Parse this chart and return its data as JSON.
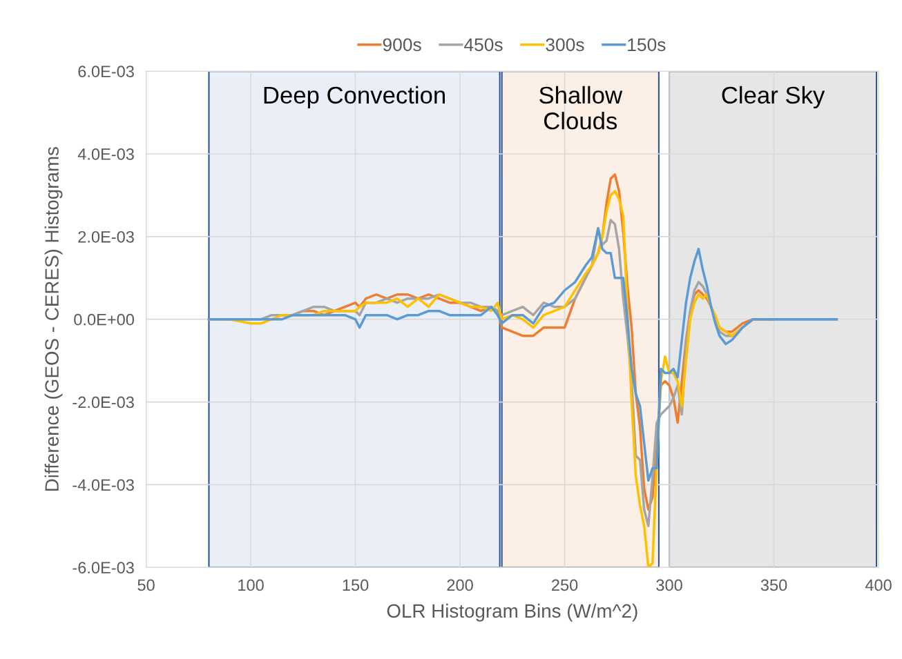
{
  "chart_data": {
    "type": "line",
    "xlabel": "OLR Histogram Bins (W/m^2)",
    "ylabel": "Difference (GEOS - CERES) Histograms",
    "x": [
      80,
      90,
      100,
      105,
      110,
      115,
      120,
      125,
      130,
      135,
      140,
      145,
      150,
      152,
      155,
      160,
      165,
      170,
      175,
      180,
      185,
      190,
      195,
      200,
      205,
      210,
      215,
      218,
      220,
      225,
      230,
      235,
      240,
      245,
      250,
      255,
      260,
      263,
      266,
      268,
      270,
      272,
      274,
      276,
      278,
      280,
      282,
      284,
      286,
      288,
      290,
      292,
      294,
      296,
      298,
      300,
      302,
      304,
      306,
      308,
      310,
      312,
      314,
      316,
      318,
      320,
      322,
      324,
      327,
      330,
      335,
      340,
      345,
      350,
      360,
      370,
      380
    ],
    "series": [
      {
        "name": "900s",
        "color": "#ed7d31",
        "values": [
          null,
          null,
          null,
          null,
          null,
          0.0001,
          0.0001,
          0.0002,
          0.0002,
          0.0001,
          0.0002,
          0.0003,
          0.0004,
          0.0003,
          0.0005,
          0.0006,
          0.0005,
          0.0006,
          0.0006,
          0.0005,
          0.0006,
          0.0005,
          0.0004,
          0.0004,
          0.0003,
          0.0002,
          0.0003,
          0.0002,
          -0.0002,
          -0.0003,
          -0.0004,
          -0.0004,
          -0.0002,
          -0.0002,
          -0.0002,
          0.0005,
          0.001,
          0.0013,
          0.0016,
          0.002,
          0.0028,
          0.0034,
          0.0035,
          0.0031,
          0.0021,
          0.0008,
          -0.0002,
          -0.0018,
          -0.0026,
          -0.0041,
          -0.0046,
          -0.0043,
          -0.003,
          -0.0016,
          -0.0015,
          -0.0016,
          -0.0019,
          -0.0025,
          -0.0015,
          -0.0005,
          0.0002,
          0.0006,
          0.0007,
          0.0006,
          0.0005,
          0.0003,
          0,
          -0.0002,
          -0.0003,
          -0.0003,
          -0.0001,
          0,
          0,
          0,
          null,
          null,
          null
        ]
      },
      {
        "name": "450s",
        "color": "#a5a5a5",
        "values": [
          0,
          0,
          0,
          0,
          0.0001,
          0.0001,
          0.0001,
          0.0002,
          0.0003,
          0.0003,
          0.0002,
          0.0002,
          0.0002,
          0.0001,
          0.0004,
          0.0004,
          0.0005,
          0.0004,
          0.0005,
          0.0005,
          0.0005,
          0.0006,
          0.0005,
          0.0004,
          0.0004,
          0.0003,
          0.0003,
          0.0002,
          0.0001,
          0.0002,
          0.0003,
          0.0001,
          0.0004,
          0.0003,
          0.0003,
          0.0005,
          0.001,
          0.0013,
          0.0022,
          0.0018,
          0.0019,
          0.0024,
          0.0023,
          0.0017,
          0.0005,
          -0.0004,
          -0.0015,
          -0.0033,
          -0.0034,
          -0.0046,
          -0.005,
          -0.0038,
          -0.0025,
          -0.0023,
          -0.0022,
          -0.0021,
          -0.0019,
          -0.0016,
          -0.0023,
          -0.0006,
          0.0002,
          0.0007,
          0.0009,
          0.0008,
          0.0006,
          0.0003,
          0,
          -0.0003,
          -0.0004,
          -0.0004,
          -0.0002,
          0,
          0,
          0,
          0,
          0,
          0
        ]
      },
      {
        "name": "300s",
        "color": "#ffc000",
        "values": [
          0,
          0,
          -0.0001,
          -0.0001,
          0,
          0.0001,
          0.0001,
          0.0001,
          0.0001,
          0.0002,
          0.0002,
          0.0002,
          0.0002,
          0.0003,
          0.0004,
          0.0004,
          0.0004,
          0.0005,
          0.0003,
          0.0005,
          0.0003,
          0.0006,
          0.0005,
          0.0004,
          0.0003,
          0.0003,
          0.0002,
          0.0004,
          0,
          0.0001,
          0,
          -0.0002,
          0.0001,
          0.0002,
          0.0003,
          0.0007,
          0.0011,
          0.0013,
          0.0016,
          0.002,
          0.0026,
          0.003,
          0.0031,
          0.0029,
          0.0025,
          0.0002,
          -0.002,
          -0.0038,
          -0.0045,
          -0.005,
          -0.006,
          -0.0059,
          -0.0035,
          -0.0015,
          -0.0009,
          -0.0013,
          -0.0013,
          -0.0015,
          -0.0021,
          -0.001,
          0,
          0.0004,
          0.0006,
          0.0005,
          0.0006,
          0.0003,
          0.0001,
          -0.0002,
          -0.0003,
          -0.0004,
          -0.0002,
          0,
          0,
          null,
          null,
          null,
          null
        ]
      },
      {
        "name": "150s",
        "color": "#5b9bd5",
        "values": [
          0,
          0,
          0,
          0,
          0,
          0,
          0.0001,
          0.0001,
          0.0001,
          0.0001,
          0.0001,
          0.0001,
          0,
          -0.0002,
          0.0001,
          0.0001,
          0.0001,
          0,
          0.0001,
          0.0001,
          0.0002,
          0.0002,
          0.0001,
          0.0001,
          0.0001,
          0.0001,
          0.0003,
          0.0001,
          -0.0001,
          0.0001,
          0.0001,
          -0.0001,
          0.0003,
          0.0004,
          0.0007,
          0.0009,
          0.0013,
          0.0015,
          0.0022,
          0.0017,
          0.0016,
          0.0016,
          0.001,
          0.001,
          0.001,
          0,
          -0.0012,
          -0.0018,
          -0.0021,
          -0.003,
          -0.0039,
          -0.0036,
          -0.0036,
          -0.0012,
          -0.0013,
          -0.0013,
          -0.0012,
          -0.0014,
          -0.0005,
          0.0004,
          0.001,
          0.0014,
          0.0017,
          0.0012,
          0.0008,
          0.0003,
          -0.0001,
          -0.0004,
          -0.0006,
          -0.0005,
          -0.0002,
          0,
          0,
          0,
          0,
          0,
          0
        ]
      }
    ],
    "xlim": [
      50,
      400
    ],
    "xticks": [
      50,
      100,
      150,
      200,
      250,
      300,
      350,
      400
    ],
    "ylim": [
      -0.006,
      0.006
    ],
    "yticks": [
      {
        "value": -0.006,
        "label": "-6.0E-03"
      },
      {
        "value": -0.004,
        "label": "-4.0E-03"
      },
      {
        "value": -0.002,
        "label": "-2.0E-03"
      },
      {
        "value": 0,
        "label": "0.0E+00"
      },
      {
        "value": 0.002,
        "label": "2.0E-03"
      },
      {
        "value": 0.004,
        "label": "4.0E-03"
      },
      {
        "value": 0.006,
        "label": "6.0E-03"
      }
    ],
    "bands": [
      {
        "axis": "x",
        "from": 80,
        "to": 219,
        "label": "Deep Convection",
        "color": "#e9eef7"
      },
      {
        "axis": "x",
        "from": 220,
        "to": 295,
        "label": "Shallow\nClouds",
        "color": "#fbefe6"
      },
      {
        "axis": "x",
        "from": 300,
        "to": 399,
        "label": "Clear Sky",
        "color": "#e6e6e6"
      }
    ],
    "grid": true,
    "legend": "top",
    "marker": "none",
    "line_style": "solid"
  }
}
